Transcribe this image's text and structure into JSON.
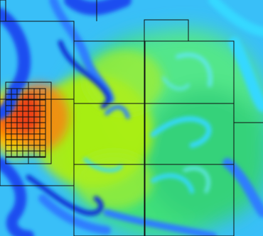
{
  "figure": {
    "type": "simulation-colormap-with-amr-grid",
    "colormap": [
      "#0a2fd6",
      "#2f7dff",
      "#35d8ff",
      "#6ff08a",
      "#b8f000",
      "#ffd400",
      "#ff8a00",
      "#e8361a"
    ],
    "background_color": "#39bff8",
    "grid_line_color": "#111111"
  }
}
